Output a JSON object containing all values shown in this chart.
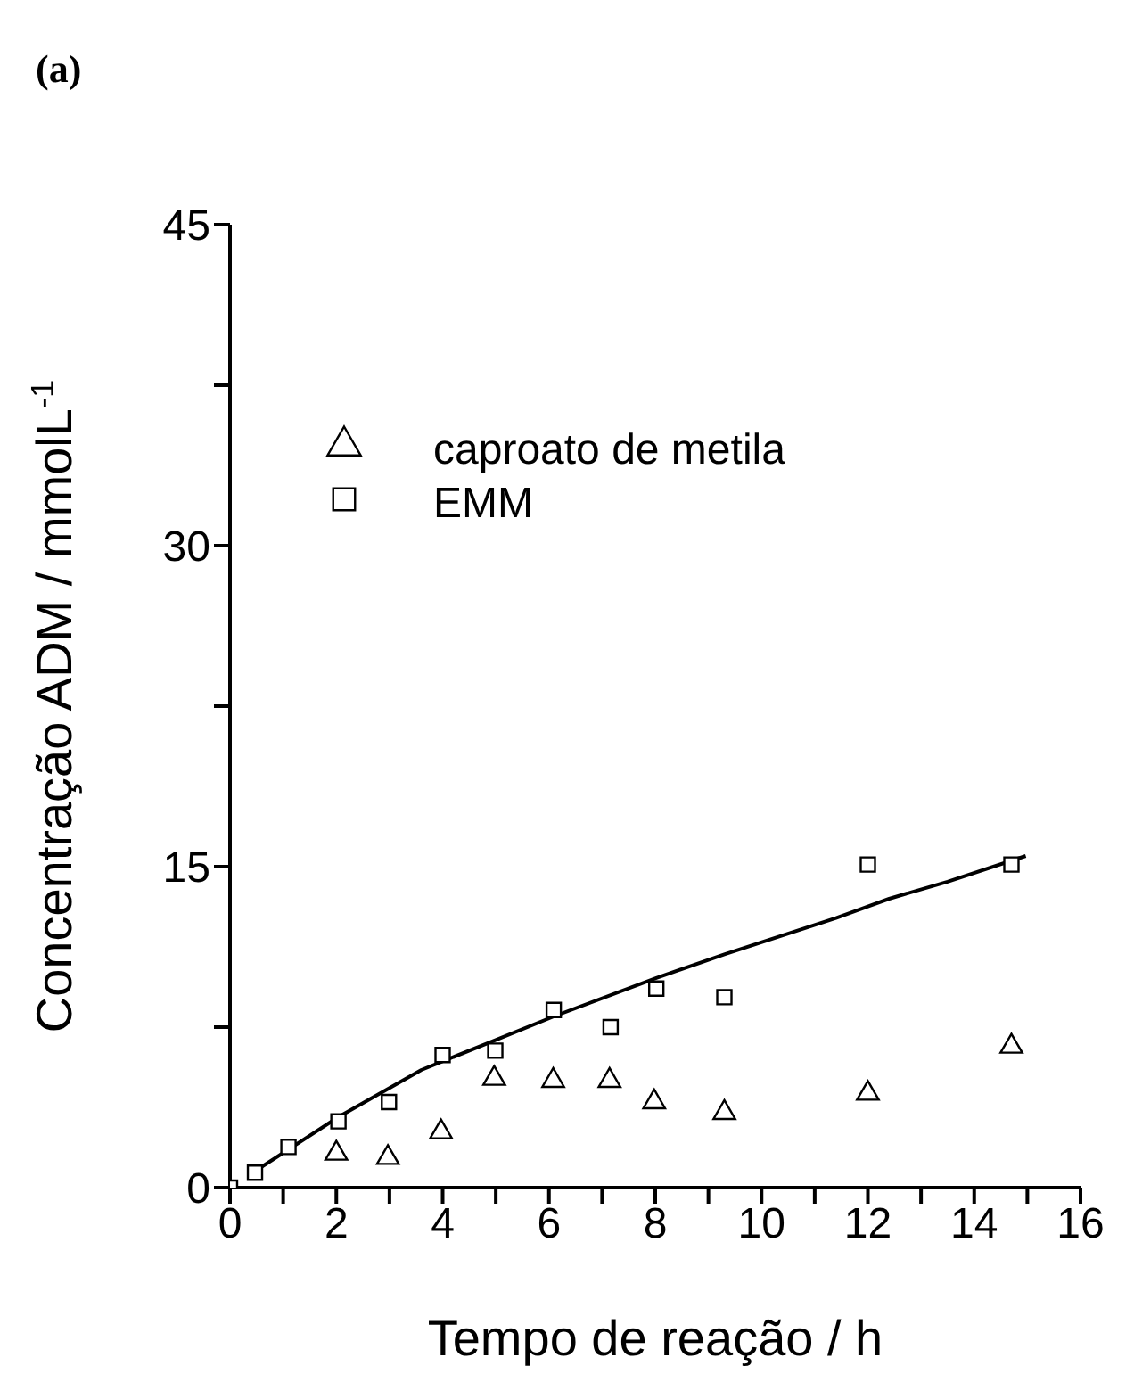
{
  "chart_data": {
    "type": "scatter",
    "title": "(a)",
    "xlabel": "Tempo de reação / h",
    "ylabel": "Concentração ADM / mmolL$^{-1}$",
    "xlim": [
      0,
      16
    ],
    "xticks": [
      0,
      {
        "value": 1,
        "label": null
      },
      2,
      {
        "value": 3,
        "label": null
      },
      4,
      {
        "value": 5,
        "label": null
      },
      6,
      {
        "value": 7,
        "label": null
      },
      8,
      {
        "value": 9,
        "label": null
      },
      10,
      {
        "value": 11,
        "label": null
      },
      12,
      {
        "value": 13,
        "label": null
      },
      14,
      {
        "value": 15,
        "label": null
      },
      16
    ],
    "ylim": [
      0,
      45
    ],
    "yticks": [
      0,
      {
        "value": 7.5,
        "label": null
      },
      15,
      {
        "value": 22.5,
        "label": null
      },
      30,
      {
        "value": 37.5,
        "label": null
      },
      45
    ],
    "legend": "top left",
    "grid": false,
    "series": [
      {
        "name": "caproato de metila",
        "marker": "triangle",
        "color": "#000000",
        "x": [
          2.0,
          2.97,
          3.97,
          4.97,
          6.08,
          7.14,
          7.98,
          9.3,
          12.0,
          14.7
        ],
        "values": [
          1.6,
          1.4,
          2.6,
          5.1,
          5.0,
          5.0,
          4.0,
          3.5,
          4.4,
          6.6
        ]
      },
      {
        "name": "EMM",
        "marker": "square",
        "color": "#000000",
        "x": [
          0,
          0.47,
          1.1,
          2.04,
          2.99,
          4.0,
          4.99,
          6.09,
          7.16,
          8.02,
          9.3,
          12.0,
          14.7
        ],
        "values": [
          0,
          0.7,
          1.9,
          3.1,
          4.0,
          6.2,
          6.4,
          8.3,
          7.5,
          9.3,
          8.9,
          15.1,
          15.1
        ]
      },
      {
        "type": "line",
        "marker": "none",
        "line_style": "solid",
        "color": "#000000",
        "x": [
          0.49,
          2.04,
          3.6,
          5.0,
          6.09,
          8.02,
          9.3,
          11.4,
          12.4,
          13.5,
          14.97
        ],
        "values": [
          0.8,
          3.3,
          5.5,
          6.9,
          8.0,
          9.8,
          10.9,
          12.6,
          13.5,
          14.3,
          15.5
        ]
      }
    ]
  }
}
